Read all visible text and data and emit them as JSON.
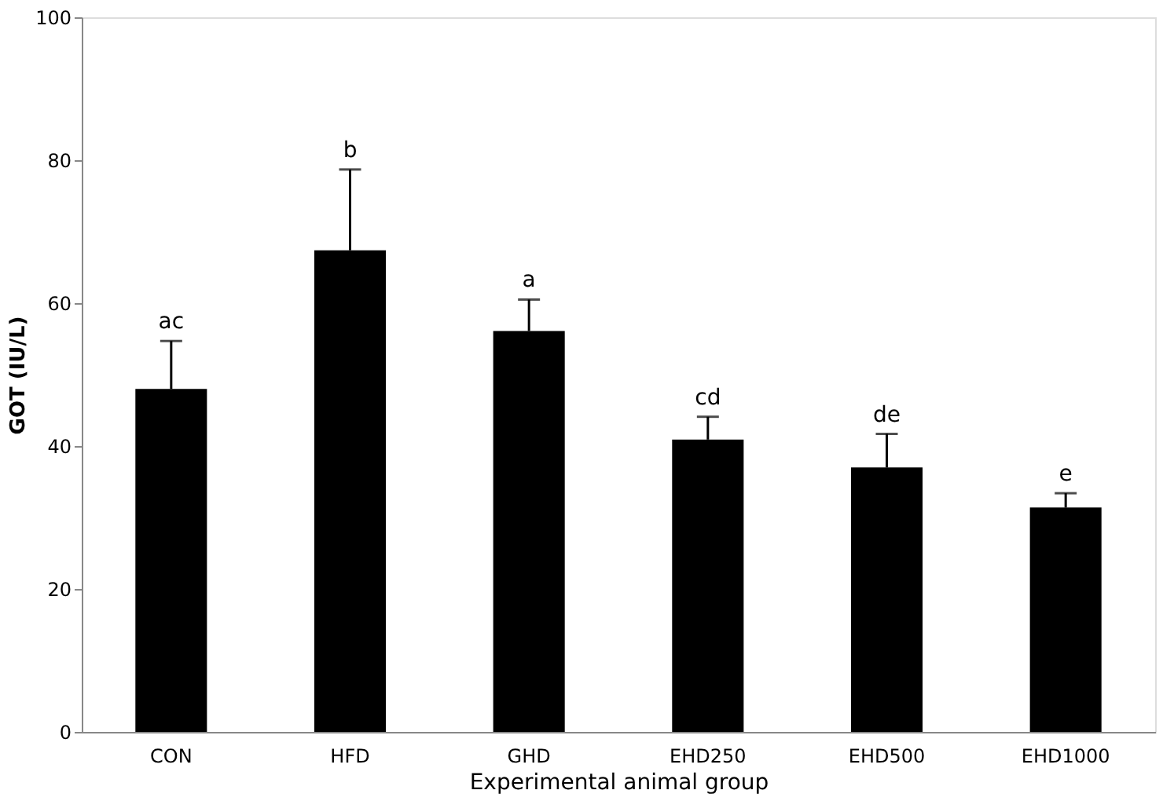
{
  "chart_data": {
    "type": "bar",
    "xlabel": "Experimental animal group",
    "ylabel": "GOT (IU/L)",
    "categories": [
      "CON",
      "HFD",
      "GHD",
      "EHD250",
      "EHD500",
      "EHD1000"
    ],
    "values": [
      48,
      67.4,
      56.1,
      40.9,
      37,
      31.4
    ],
    "color": "#000000",
    "errors": [
      [
        48,
        54.7
      ],
      [
        67.4,
        78.7
      ],
      [
        56.1,
        60.5
      ],
      [
        40.9,
        44.1
      ],
      [
        37,
        41.7
      ],
      [
        31.4,
        33.4
      ]
    ],
    "ylim": [
      0,
      100
    ],
    "yticks": [
      0,
      20,
      40,
      60,
      80,
      100
    ],
    "grid": false,
    "annotations": [
      "ac",
      "b",
      "a",
      "cd",
      "de",
      "e"
    ]
  }
}
